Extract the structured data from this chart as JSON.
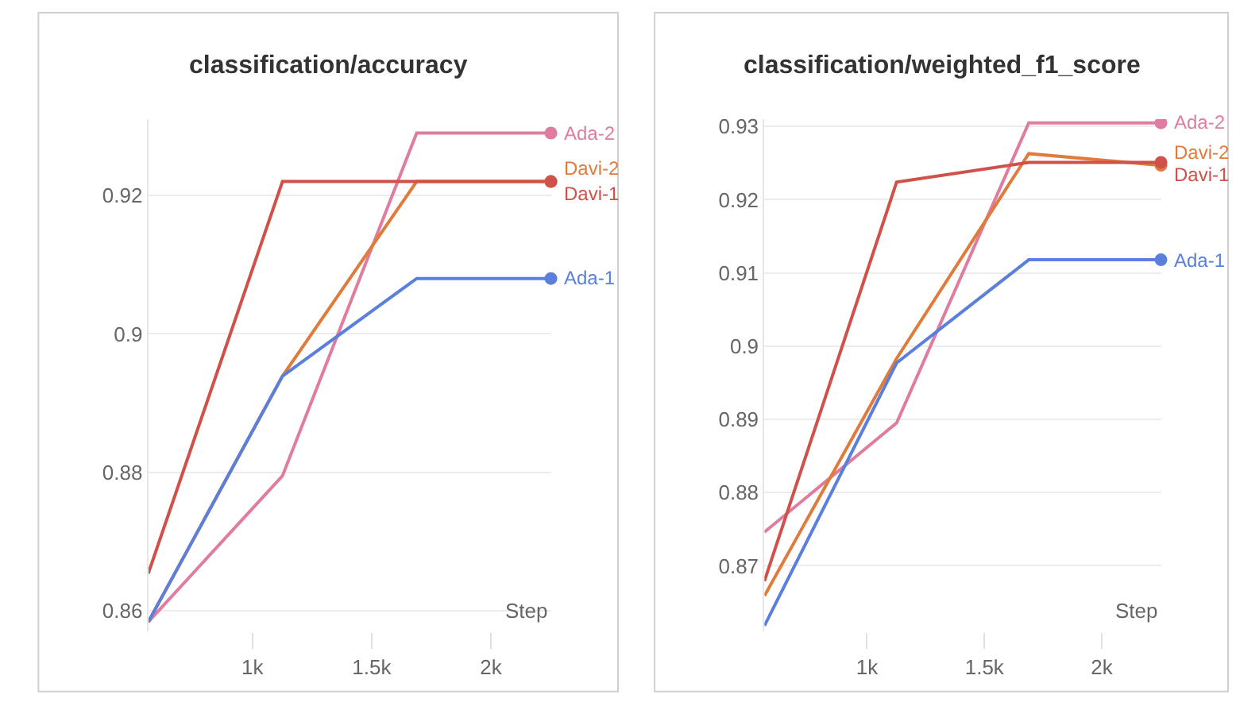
{
  "chart_data": [
    {
      "type": "line",
      "title": "classification/accuracy",
      "xlabel": "Step",
      "x": [
        563,
        1126,
        1689,
        2252
      ],
      "xlim": [
        563,
        2252
      ],
      "xticks": [
        {
          "value": 1000,
          "label": "1k"
        },
        {
          "value": 1500,
          "label": "1.5k"
        },
        {
          "value": 2000,
          "label": "2k"
        }
      ],
      "ylim": [
        0.857,
        0.931
      ],
      "yticks": [
        0.86,
        0.88,
        0.9,
        0.92
      ],
      "grid": "y",
      "legend": "right",
      "line_style": "solid",
      "series": [
        {
          "name": "Ada-2",
          "color": "#e07ca0",
          "values": [
            0.8584,
            0.8795,
            0.929,
            0.929
          ]
        },
        {
          "name": "Davi-2",
          "color": "#e07b3c",
          "values": [
            0.8584,
            0.8939,
            0.922,
            0.922
          ]
        },
        {
          "name": "Ada-1",
          "color": "#5a7fdc",
          "values": [
            0.8584,
            0.8939,
            0.908,
            0.908
          ]
        },
        {
          "name": "Davi-1",
          "color": "#d0504a",
          "values": [
            0.8654,
            0.922,
            0.922,
            0.922
          ]
        }
      ]
    },
    {
      "type": "line",
      "title": "classification/weighted_f1_score",
      "xlabel": "Step",
      "x": [
        563,
        1126,
        1689,
        2252
      ],
      "xlim": [
        563,
        2252
      ],
      "xticks": [
        {
          "value": 1000,
          "label": "1k"
        },
        {
          "value": 1500,
          "label": "1.5k"
        },
        {
          "value": 2000,
          "label": "2k"
        }
      ],
      "ylim": [
        0.861,
        0.931
      ],
      "yticks": [
        0.87,
        0.88,
        0.89,
        0.9,
        0.91,
        0.92,
        0.93
      ],
      "grid": "y",
      "legend": "right",
      "line_style": "solid",
      "series": [
        {
          "name": "Ada-2",
          "color": "#e07ca0",
          "values": [
            0.8746,
            0.8895,
            0.9305,
            0.9305
          ]
        },
        {
          "name": "Davi-2",
          "color": "#e07b3c",
          "values": [
            0.8659,
            0.8983,
            0.9263,
            0.9247
          ]
        },
        {
          "name": "Ada-1",
          "color": "#5a7fdc",
          "values": [
            0.8618,
            0.8977,
            0.9118,
            0.9118
          ]
        },
        {
          "name": "Davi-1",
          "color": "#d0504a",
          "values": [
            0.8679,
            0.9224,
            0.9251,
            0.9251
          ]
        }
      ]
    }
  ]
}
